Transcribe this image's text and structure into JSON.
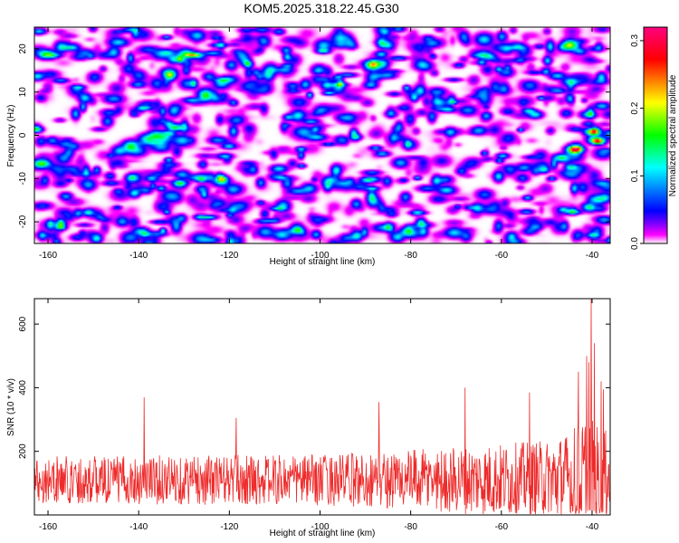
{
  "title": "KOM5.2025.318.22.45.G30",
  "chart_data": [
    {
      "type": "heatmap",
      "xlabel": "Height of straight line (km)",
      "ylabel": "Frequency (Hz)",
      "xlim": [
        -163,
        -36
      ],
      "ylim": [
        -25,
        25
      ],
      "x_ticks": [
        -160,
        -140,
        -120,
        -100,
        -80,
        -60,
        -40
      ],
      "y_ticks": [
        -20,
        -10,
        0,
        10,
        20
      ],
      "colorbar": {
        "label": "Normalized spectral amplitude",
        "range": [
          0,
          0.32
        ],
        "ticks": [
          0.0,
          0.1,
          0.2,
          0.3
        ],
        "colors": [
          "#ffffff",
          "#ff00ff",
          "#7f00ff",
          "#0000ff",
          "#00ffff",
          "#00ff00",
          "#ffff00",
          "#ff0000",
          "#ff0080"
        ]
      },
      "hotspots": [
        {
          "x": -44,
          "y": -3,
          "value": 0.3
        },
        {
          "x": -40,
          "y": 1,
          "value": 0.24
        },
        {
          "x": -39,
          "y": -1,
          "value": 0.2
        },
        {
          "x": -47,
          "y": -5,
          "value": 0.13
        },
        {
          "x": -41,
          "y": 5,
          "value": 0.11
        },
        {
          "x": -38,
          "y": 7,
          "value": 0.1
        }
      ],
      "background_level": 0.035
    },
    {
      "type": "line",
      "xlabel": "Height of straight line (km)",
      "ylabel": "SNR (10 * v/v)",
      "xlim": [
        -163,
        -36
      ],
      "ylim": [
        0,
        680
      ],
      "x_ticks": [
        -160,
        -140,
        -120,
        -100,
        -80,
        -60,
        -40
      ],
      "y_ticks": [
        200,
        400,
        600
      ],
      "color": "#ee2b2b",
      "sample_step_km": 0.1,
      "baseline_snr": 110,
      "noise_amplitude_by_height": {
        "x": [
          -163,
          -100,
          -80,
          -50,
          -45,
          -42,
          -38,
          -36
        ],
        "amp": [
          75,
          80,
          95,
          125,
          150,
          210,
          170,
          140
        ]
      },
      "peaks": [
        {
          "x": -138.8,
          "y": 370
        },
        {
          "x": -118.5,
          "y": 305
        },
        {
          "x": -87.0,
          "y": 355
        },
        {
          "x": -68.0,
          "y": 400
        },
        {
          "x": -53.8,
          "y": 385
        },
        {
          "x": -43.0,
          "y": 450
        },
        {
          "x": -41.2,
          "y": 500
        },
        {
          "x": -40.7,
          "y": 480
        },
        {
          "x": -40.2,
          "y": 680
        },
        {
          "x": -39.5,
          "y": 540
        },
        {
          "x": -38.0,
          "y": 420
        },
        {
          "x": -37.5,
          "y": 395
        }
      ]
    }
  ]
}
